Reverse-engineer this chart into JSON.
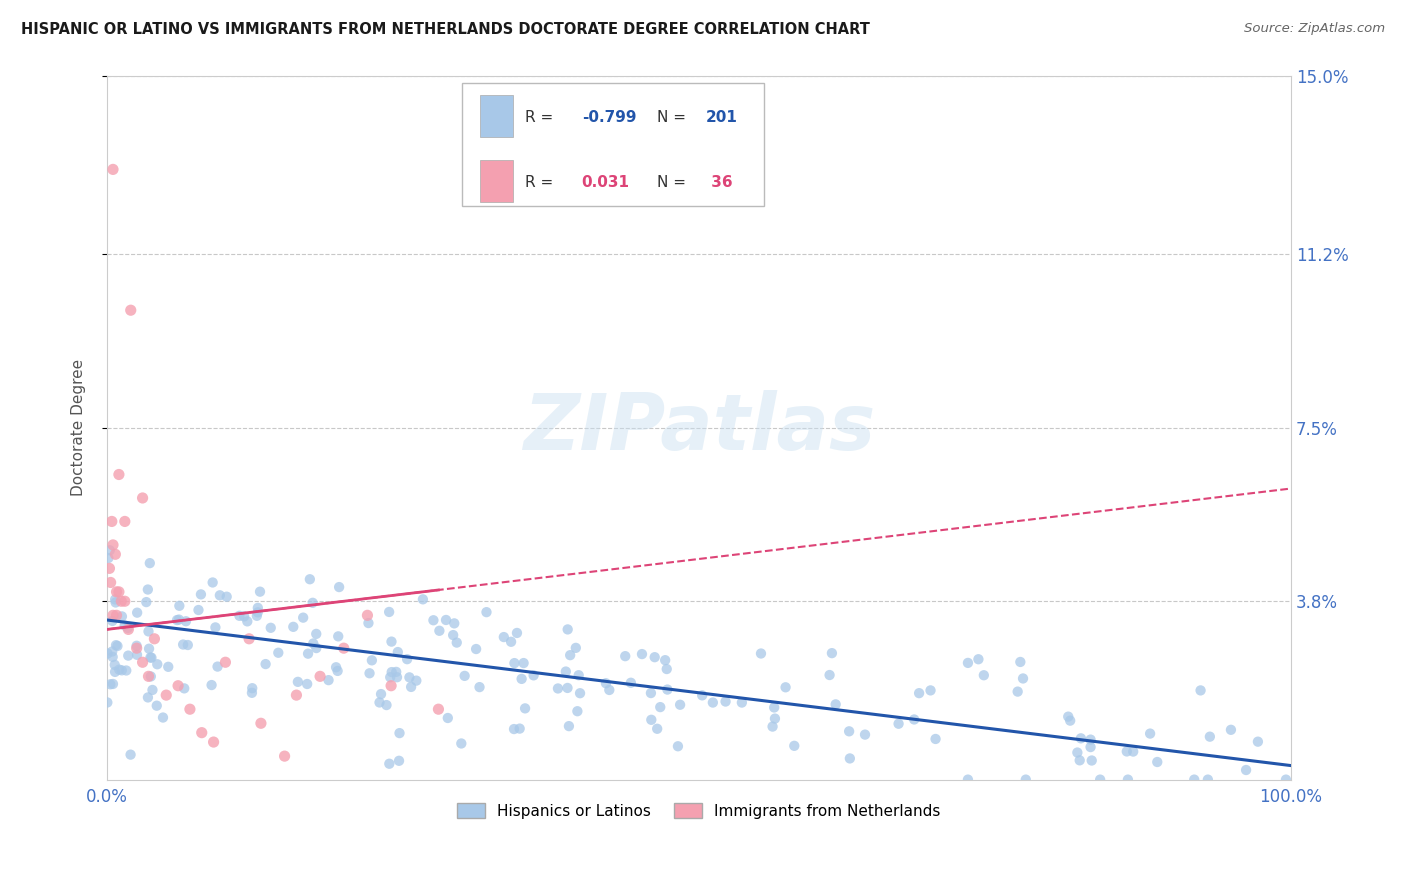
{
  "title": "HISPANIC OR LATINO VS IMMIGRANTS FROM NETHERLANDS DOCTORATE DEGREE CORRELATION CHART",
  "source": "Source: ZipAtlas.com",
  "ylabel": "Doctorate Degree",
  "xlim": [
    0.0,
    1.0
  ],
  "ylim": [
    0.0,
    0.15
  ],
  "yticks": [
    0.038,
    0.075,
    0.112,
    0.15
  ],
  "ytick_labels": [
    "3.8%",
    "7.5%",
    "11.2%",
    "15.0%"
  ],
  "xtick_labels": [
    "0.0%",
    "100.0%"
  ],
  "blue_R": -0.799,
  "blue_N": 201,
  "pink_R": 0.031,
  "pink_N": 36,
  "blue_color": "#a8c8e8",
  "pink_color": "#f4a0b0",
  "blue_line_color": "#2255aa",
  "pink_line_color": "#dd4477",
  "bg_color": "#ffffff",
  "watermark": "ZIPatlas",
  "axis_label_color": "#4472c4",
  "legend_label1": "Hispanics or Latinos",
  "legend_label2": "Immigrants from Netherlands"
}
